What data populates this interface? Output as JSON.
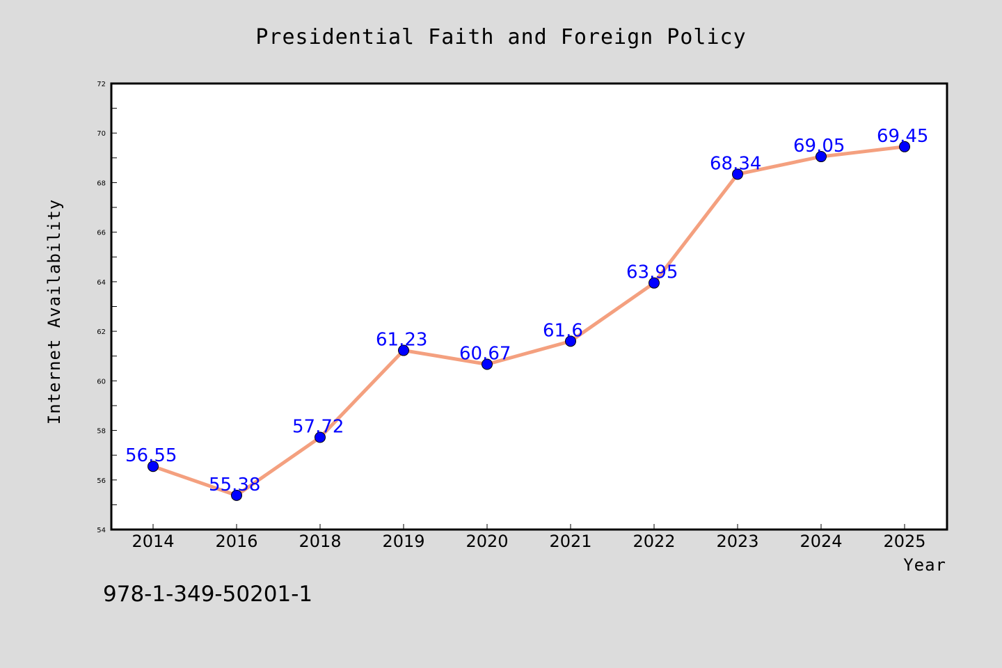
{
  "chart_data": {
    "type": "line",
    "title": "Presidential Faith and Foreign Policy",
    "xlabel": "Year",
    "ylabel": "Internet Availability",
    "categories": [
      "2014",
      "2016",
      "2018",
      "2019",
      "2020",
      "2021",
      "2022",
      "2023",
      "2024",
      "2025"
    ],
    "series": [
      {
        "values": [
          56.55,
          55.38,
          57.72,
          61.23,
          60.67,
          61.6,
          63.95,
          68.34,
          69.05,
          69.45
        ],
        "labels": [
          "56.55",
          "55.38",
          "57.72",
          "61.23",
          "60.67",
          "61.6",
          "63.95",
          "68.34",
          "69.05",
          "69.45"
        ]
      }
    ],
    "ylim": [
      54,
      72
    ],
    "yticks": [
      "54",
      "56",
      "58",
      "60",
      "62",
      "64",
      "66",
      "68",
      "70",
      "72"
    ],
    "grid": false,
    "legend": "none",
    "colors": {
      "line": "#f4a07f",
      "marker": "#0000ff",
      "data_label": "#0000ff",
      "plot_background": "#ffffff",
      "page_background": "#dcdcdc"
    }
  },
  "footer": {
    "code": "978-1-349-50201-1"
  }
}
